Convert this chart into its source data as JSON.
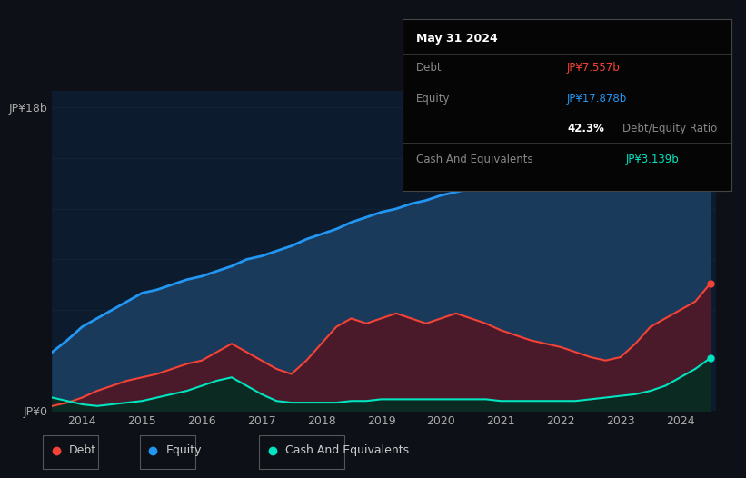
{
  "background_color": "#0d1117",
  "plot_bg_color": "#0d1b2e",
  "years_x": [
    2013.5,
    2013.75,
    2014.0,
    2014.25,
    2014.5,
    2014.75,
    2015.0,
    2015.25,
    2015.5,
    2015.75,
    2016.0,
    2016.25,
    2016.5,
    2016.75,
    2017.0,
    2017.25,
    2017.5,
    2017.75,
    2018.0,
    2018.25,
    2018.5,
    2018.75,
    2019.0,
    2019.25,
    2019.5,
    2019.75,
    2020.0,
    2020.25,
    2020.5,
    2020.75,
    2021.0,
    2021.25,
    2021.5,
    2021.75,
    2022.0,
    2022.25,
    2022.5,
    2022.75,
    2023.0,
    2023.25,
    2023.5,
    2023.75,
    2024.0,
    2024.25,
    2024.5
  ],
  "equity": [
    3.5,
    4.2,
    5.0,
    5.5,
    6.0,
    6.5,
    7.0,
    7.2,
    7.5,
    7.8,
    8.0,
    8.3,
    8.6,
    9.0,
    9.2,
    9.5,
    9.8,
    10.2,
    10.5,
    10.8,
    11.2,
    11.5,
    11.8,
    12.0,
    12.3,
    12.5,
    12.8,
    13.0,
    13.2,
    13.5,
    13.8,
    14.0,
    14.3,
    14.6,
    14.8,
    15.0,
    15.3,
    15.6,
    15.9,
    16.2,
    16.5,
    16.8,
    17.0,
    17.4,
    17.878
  ],
  "debt": [
    0.3,
    0.5,
    0.8,
    1.2,
    1.5,
    1.8,
    2.0,
    2.2,
    2.5,
    2.8,
    3.0,
    3.5,
    4.0,
    3.5,
    3.0,
    2.5,
    2.2,
    3.0,
    4.0,
    5.0,
    5.5,
    5.2,
    5.5,
    5.8,
    5.5,
    5.2,
    5.5,
    5.8,
    5.5,
    5.2,
    4.8,
    4.5,
    4.2,
    4.0,
    3.8,
    3.5,
    3.2,
    3.0,
    3.2,
    4.0,
    5.0,
    5.5,
    6.0,
    6.5,
    7.557
  ],
  "cash": [
    0.8,
    0.6,
    0.4,
    0.3,
    0.4,
    0.5,
    0.6,
    0.8,
    1.0,
    1.2,
    1.5,
    1.8,
    2.0,
    1.5,
    1.0,
    0.6,
    0.5,
    0.5,
    0.5,
    0.5,
    0.6,
    0.6,
    0.7,
    0.7,
    0.7,
    0.7,
    0.7,
    0.7,
    0.7,
    0.7,
    0.6,
    0.6,
    0.6,
    0.6,
    0.6,
    0.6,
    0.7,
    0.8,
    0.9,
    1.0,
    1.2,
    1.5,
    2.0,
    2.5,
    3.139
  ],
  "equity_color": "#2196f3",
  "debt_color": "#f44336",
  "cash_color": "#00e5c0",
  "equity_fill": "#1a3a5c",
  "debt_fill": "#4a1a2a",
  "cash_fill": "#0a2a22",
  "ylim": [
    0,
    19
  ],
  "xlim": [
    2013.5,
    2024.6
  ],
  "yticks": [
    0,
    18
  ],
  "ytick_labels": [
    "JP¥ 0",
    "JP¥ 18b"
  ],
  "xtick_labels": [
    "2014",
    "2015",
    "2016",
    "2017",
    "2018",
    "2019",
    "2020",
    "2021",
    "2022",
    "2023",
    "2024"
  ],
  "xtick_positions": [
    2014,
    2015,
    2016,
    2017,
    2018,
    2019,
    2020,
    2021,
    2022,
    2023,
    2024
  ],
  "grid_color": "#1e3050",
  "grid_alpha": 0.5,
  "legend_items": [
    {
      "label": "Debt",
      "color": "#f44336"
    },
    {
      "label": "Equity",
      "color": "#2196f3"
    },
    {
      "label": "Cash And Equivalents",
      "color": "#00e5c0"
    }
  ],
  "dot_x": 2024.5,
  "dot_y_debt": 7.557,
  "dot_y_equity": 17.878,
  "dot_y_cash": 3.139,
  "tooltip": {
    "title": "May 31 2024",
    "debt_label": "Debt",
    "debt_value": "JP¥7.557b",
    "equity_label": "Equity",
    "equity_value": "JP¥17.878b",
    "ratio_pct": "42.3%",
    "ratio_label": "Debt/Equity Ratio",
    "cash_label": "Cash And Equivalents",
    "cash_value": "JP¥3.139b"
  }
}
